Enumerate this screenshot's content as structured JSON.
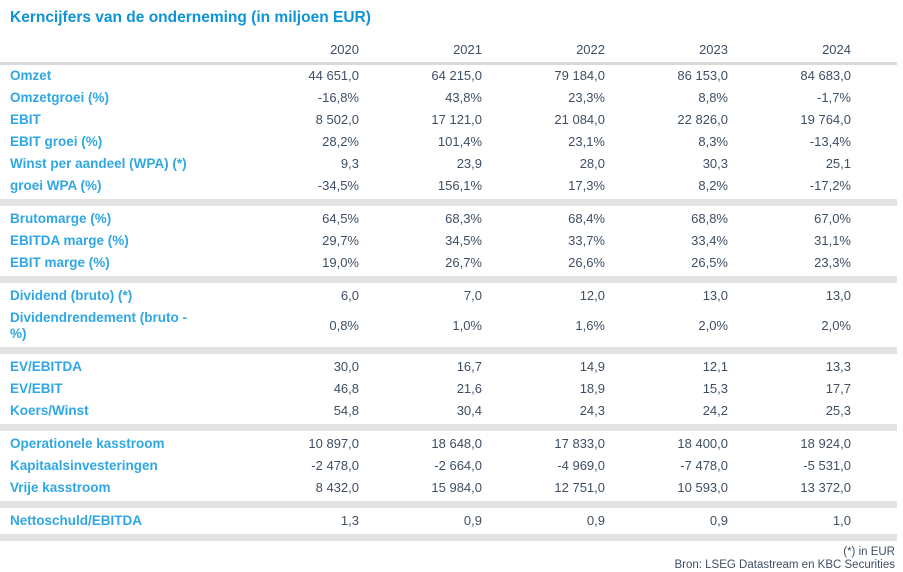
{
  "title": "Kerncijfers van de onderneming (in miljoen EUR)",
  "columns": [
    "2020",
    "2021",
    "2022",
    "2023",
    "2024"
  ],
  "sections": [
    {
      "rows": [
        {
          "label": "Omzet",
          "values": [
            "44 651,0",
            "64 215,0",
            "79 184,0",
            "86 153,0",
            "84 683,0"
          ]
        },
        {
          "label": "Omzetgroei (%)",
          "values": [
            "-16,8%",
            "43,8%",
            "23,3%",
            "8,8%",
            "-1,7%"
          ]
        },
        {
          "label": "EBIT",
          "values": [
            "8 502,0",
            "17 121,0",
            "21 084,0",
            "22 826,0",
            "19 764,0"
          ]
        },
        {
          "label": "EBIT groei (%)",
          "values": [
            "28,2%",
            "101,4%",
            "23,1%",
            "8,3%",
            "-13,4%"
          ]
        },
        {
          "label": "Winst per aandeel (WPA) (*)",
          "values": [
            "9,3",
            "23,9",
            "28,0",
            "30,3",
            "25,1"
          ]
        },
        {
          "label": "groei WPA (%)",
          "values": [
            "-34,5%",
            "156,1%",
            "17,3%",
            "8,2%",
            "-17,2%"
          ]
        }
      ]
    },
    {
      "rows": [
        {
          "label": "Brutomarge (%)",
          "values": [
            "64,5%",
            "68,3%",
            "68,4%",
            "68,8%",
            "67,0%"
          ]
        },
        {
          "label": "EBITDA marge (%)",
          "values": [
            "29,7%",
            "34,5%",
            "33,7%",
            "33,4%",
            "31,1%"
          ]
        },
        {
          "label": "EBIT marge (%)",
          "values": [
            "19,0%",
            "26,7%",
            "26,6%",
            "26,5%",
            "23,3%"
          ]
        }
      ]
    },
    {
      "rows": [
        {
          "label": "Dividend (bruto) (*)",
          "values": [
            "6,0",
            "7,0",
            "12,0",
            "13,0",
            "13,0"
          ]
        },
        {
          "label": "Dividendrendement (bruto - %)",
          "values": [
            "0,8%",
            "1,0%",
            "1,6%",
            "2,0%",
            "2,0%"
          ]
        }
      ]
    },
    {
      "rows": [
        {
          "label": "EV/EBITDA",
          "values": [
            "30,0",
            "16,7",
            "14,9",
            "12,1",
            "13,3"
          ]
        },
        {
          "label": "EV/EBIT",
          "values": [
            "46,8",
            "21,6",
            "18,9",
            "15,3",
            "17,7"
          ]
        },
        {
          "label": "Koers/Winst",
          "values": [
            "54,8",
            "30,4",
            "24,3",
            "24,2",
            "25,3"
          ]
        }
      ]
    },
    {
      "rows": [
        {
          "label": "Operationele kasstroom",
          "values": [
            "10 897,0",
            "18 648,0",
            "17 833,0",
            "18 400,0",
            "18 924,0"
          ]
        },
        {
          "label": "Kapitaalsinvesteringen",
          "values": [
            "-2 478,0",
            "-2 664,0",
            "-4 969,0",
            "-7 478,0",
            "-5 531,0"
          ]
        },
        {
          "label": "Vrije kasstroom",
          "values": [
            "8 432,0",
            "15 984,0",
            "12 751,0",
            "10 593,0",
            "13 372,0"
          ]
        }
      ]
    },
    {
      "rows": [
        {
          "label": "Nettoschuld/EBITDA",
          "values": [
            "1,3",
            "0,9",
            "0,9",
            "0,9",
            "1,0"
          ]
        }
      ]
    }
  ],
  "footnotes": {
    "unit_note": "(*) in EUR",
    "source": "Bron: LSEG Datastream en KBC Securities"
  },
  "colors": {
    "title_blue": "#0d94d6",
    "label_blue": "#2fa7e3",
    "text_dark": "#3e4f63",
    "divider_gray": "#e3e3e3"
  }
}
